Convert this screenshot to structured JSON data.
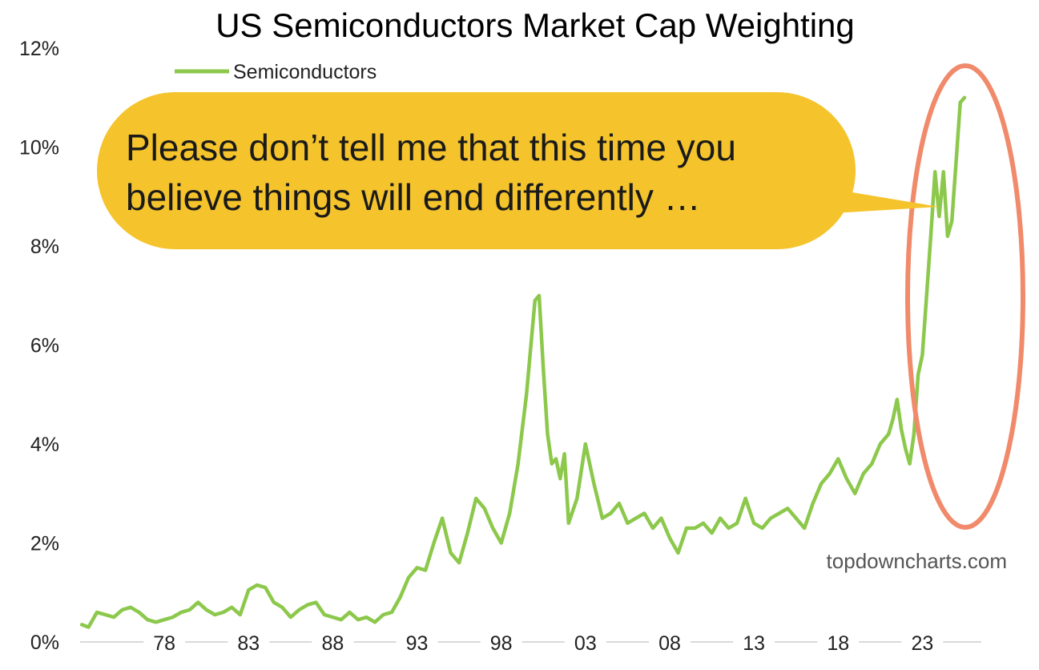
{
  "chart_data": {
    "type": "line",
    "title": "US Semiconductors Market Cap Weighting",
    "xlabel": "",
    "ylabel": "",
    "xlim": [
      1973,
      2026.5
    ],
    "ylim": [
      0,
      12
    ],
    "y_ticks": [
      0,
      2,
      4,
      6,
      8,
      10,
      12
    ],
    "y_tick_labels": [
      "0%",
      "2%",
      "4%",
      "6%",
      "8%",
      "10%",
      "12%"
    ],
    "x_ticks": [
      1978,
      1983,
      1988,
      1993,
      1998,
      2003,
      2008,
      2013,
      2018,
      2023
    ],
    "x_tick_labels": [
      "78",
      "83",
      "88",
      "93",
      "98",
      "03",
      "08",
      "13",
      "18",
      "23"
    ],
    "grid": false,
    "legend_position": "top-left",
    "colors": {
      "line": "#8cc84b",
      "callout_fill": "#f5c42c",
      "highlight_ellipse": "#f08a6b",
      "axis": "#d9d9d9"
    },
    "series": [
      {
        "name": "Semiconductors",
        "x": [
          1973.1,
          1973.5,
          1974.0,
          1974.5,
          1975.0,
          1975.5,
          1976.0,
          1976.5,
          1977.0,
          1977.5,
          1978.0,
          1978.5,
          1979.0,
          1979.5,
          1980.0,
          1980.5,
          1981.0,
          1981.5,
          1982.0,
          1982.5,
          1983.0,
          1983.5,
          1984.0,
          1984.5,
          1985.0,
          1985.5,
          1986.0,
          1986.5,
          1987.0,
          1987.5,
          1988.0,
          1988.5,
          1989.0,
          1989.5,
          1990.0,
          1990.5,
          1991.0,
          1991.5,
          1992.0,
          1992.5,
          1993.0,
          1993.5,
          1994.0,
          1994.5,
          1995.0,
          1995.5,
          1996.0,
          1996.5,
          1997.0,
          1997.5,
          1998.0,
          1998.5,
          1999.0,
          1999.5,
          2000.0,
          2000.25,
          2000.5,
          2000.75,
          2001.0,
          2001.25,
          2001.5,
          2001.75,
          2002.0,
          2002.5,
          2003.0,
          2003.5,
          2004.0,
          2004.5,
          2005.0,
          2005.5,
          2006.0,
          2006.5,
          2007.0,
          2007.5,
          2008.0,
          2008.5,
          2009.0,
          2009.5,
          2010.0,
          2010.5,
          2011.0,
          2011.5,
          2012.0,
          2012.5,
          2013.0,
          2013.5,
          2014.0,
          2014.5,
          2015.0,
          2015.5,
          2016.0,
          2016.5,
          2017.0,
          2017.5,
          2018.0,
          2018.5,
          2019.0,
          2019.5,
          2020.0,
          2020.5,
          2021.0,
          2021.25,
          2021.5,
          2021.75,
          2022.0,
          2022.25,
          2022.5,
          2022.75,
          2023.0,
          2023.25,
          2023.5,
          2023.75,
          2024.0,
          2024.25,
          2024.5,
          2024.75,
          2025.0,
          2025.25,
          2025.5
        ],
        "y": [
          0.35,
          0.3,
          0.6,
          0.55,
          0.5,
          0.65,
          0.7,
          0.6,
          0.45,
          0.4,
          0.45,
          0.5,
          0.6,
          0.65,
          0.8,
          0.65,
          0.55,
          0.6,
          0.7,
          0.55,
          1.05,
          1.15,
          1.1,
          0.8,
          0.7,
          0.5,
          0.65,
          0.75,
          0.8,
          0.55,
          0.5,
          0.45,
          0.6,
          0.45,
          0.5,
          0.4,
          0.55,
          0.6,
          0.9,
          1.3,
          1.5,
          1.45,
          2.0,
          2.5,
          1.8,
          1.6,
          2.2,
          2.9,
          2.7,
          2.3,
          2.0,
          2.6,
          3.6,
          5.0,
          6.9,
          7.0,
          5.5,
          4.2,
          3.6,
          3.7,
          3.3,
          3.8,
          2.4,
          2.9,
          4.0,
          3.2,
          2.5,
          2.6,
          2.8,
          2.4,
          2.5,
          2.6,
          2.3,
          2.5,
          2.1,
          1.8,
          2.3,
          2.3,
          2.4,
          2.2,
          2.5,
          2.3,
          2.4,
          2.9,
          2.4,
          2.3,
          2.5,
          2.6,
          2.7,
          2.5,
          2.3,
          2.8,
          3.2,
          3.4,
          3.7,
          3.3,
          3.0,
          3.4,
          3.6,
          4.0,
          4.2,
          4.5,
          4.9,
          4.3,
          3.9,
          3.6,
          4.2,
          5.4,
          5.8,
          7.0,
          8.2,
          9.5,
          8.6,
          9.5,
          8.2,
          8.5,
          9.7,
          10.9,
          11.0
        ]
      }
    ],
    "legend": [
      "Semiconductors"
    ],
    "annotation": "Please don’t tell me that this time you believe things will end differently …",
    "watermark": "topdowncharts.com"
  },
  "callout": {
    "line1": "Please don’t tell me that this time you",
    "line2": "believe things will end differently …"
  },
  "watermark": "topdowncharts.com"
}
